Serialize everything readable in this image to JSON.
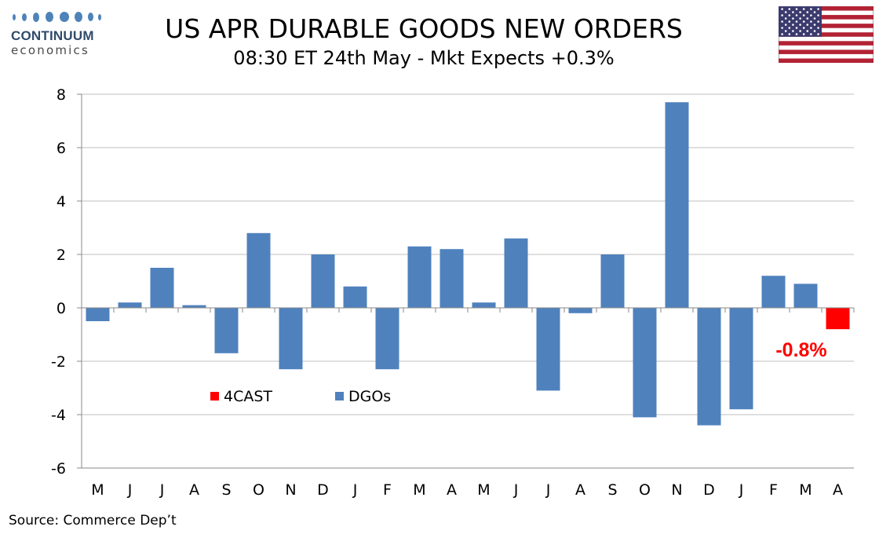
{
  "header": {
    "logo_name": "CONTINUUM",
    "logo_sub": "economics",
    "title": "US APR DURABLE GOODS NEW ORDERS",
    "subtitle": "08:30 ET 24th May - Mkt Expects +0.3%"
  },
  "source": "Source: Commerce Dep’t",
  "colors": {
    "dgos": "#4f81bd",
    "forecast": "#ff0000",
    "grid": "#bfbfbf",
    "logo_dots": "#4d83b8"
  },
  "flag": {
    "icon": "us-flag-icon"
  },
  "chart_data": {
    "type": "bar",
    "categories": [
      "M",
      "J",
      "J",
      "A",
      "S",
      "O",
      "N",
      "D",
      "J",
      "F",
      "M",
      "A",
      "M",
      "J",
      "J",
      "A",
      "S",
      "O",
      "N",
      "D",
      "J",
      "F",
      "M",
      "A"
    ],
    "series": [
      {
        "name": "DGOs",
        "color": "#4f81bd",
        "values": [
          -0.5,
          0.2,
          1.5,
          0.1,
          -1.7,
          2.8,
          -2.3,
          2.0,
          0.8,
          -2.3,
          2.3,
          2.2,
          0.2,
          2.6,
          -3.1,
          -0.2,
          2.0,
          -4.1,
          7.7,
          -4.4,
          -3.8,
          1.2,
          0.9,
          null
        ]
      },
      {
        "name": "4CAST",
        "color": "#ff0000",
        "values": [
          null,
          null,
          null,
          null,
          null,
          null,
          null,
          null,
          null,
          null,
          null,
          null,
          null,
          null,
          null,
          null,
          null,
          null,
          null,
          null,
          null,
          null,
          null,
          -0.8
        ]
      }
    ],
    "yticks": [
      "8",
      "6",
      "4",
      "2",
      "0",
      "-2",
      "-4",
      "-6"
    ],
    "ylim": [
      -6,
      8
    ],
    "grid": true,
    "legend": [
      "4CAST",
      "DGOs"
    ],
    "legend_position": "bottom-left inside plot",
    "annotation": "-0.8%"
  }
}
